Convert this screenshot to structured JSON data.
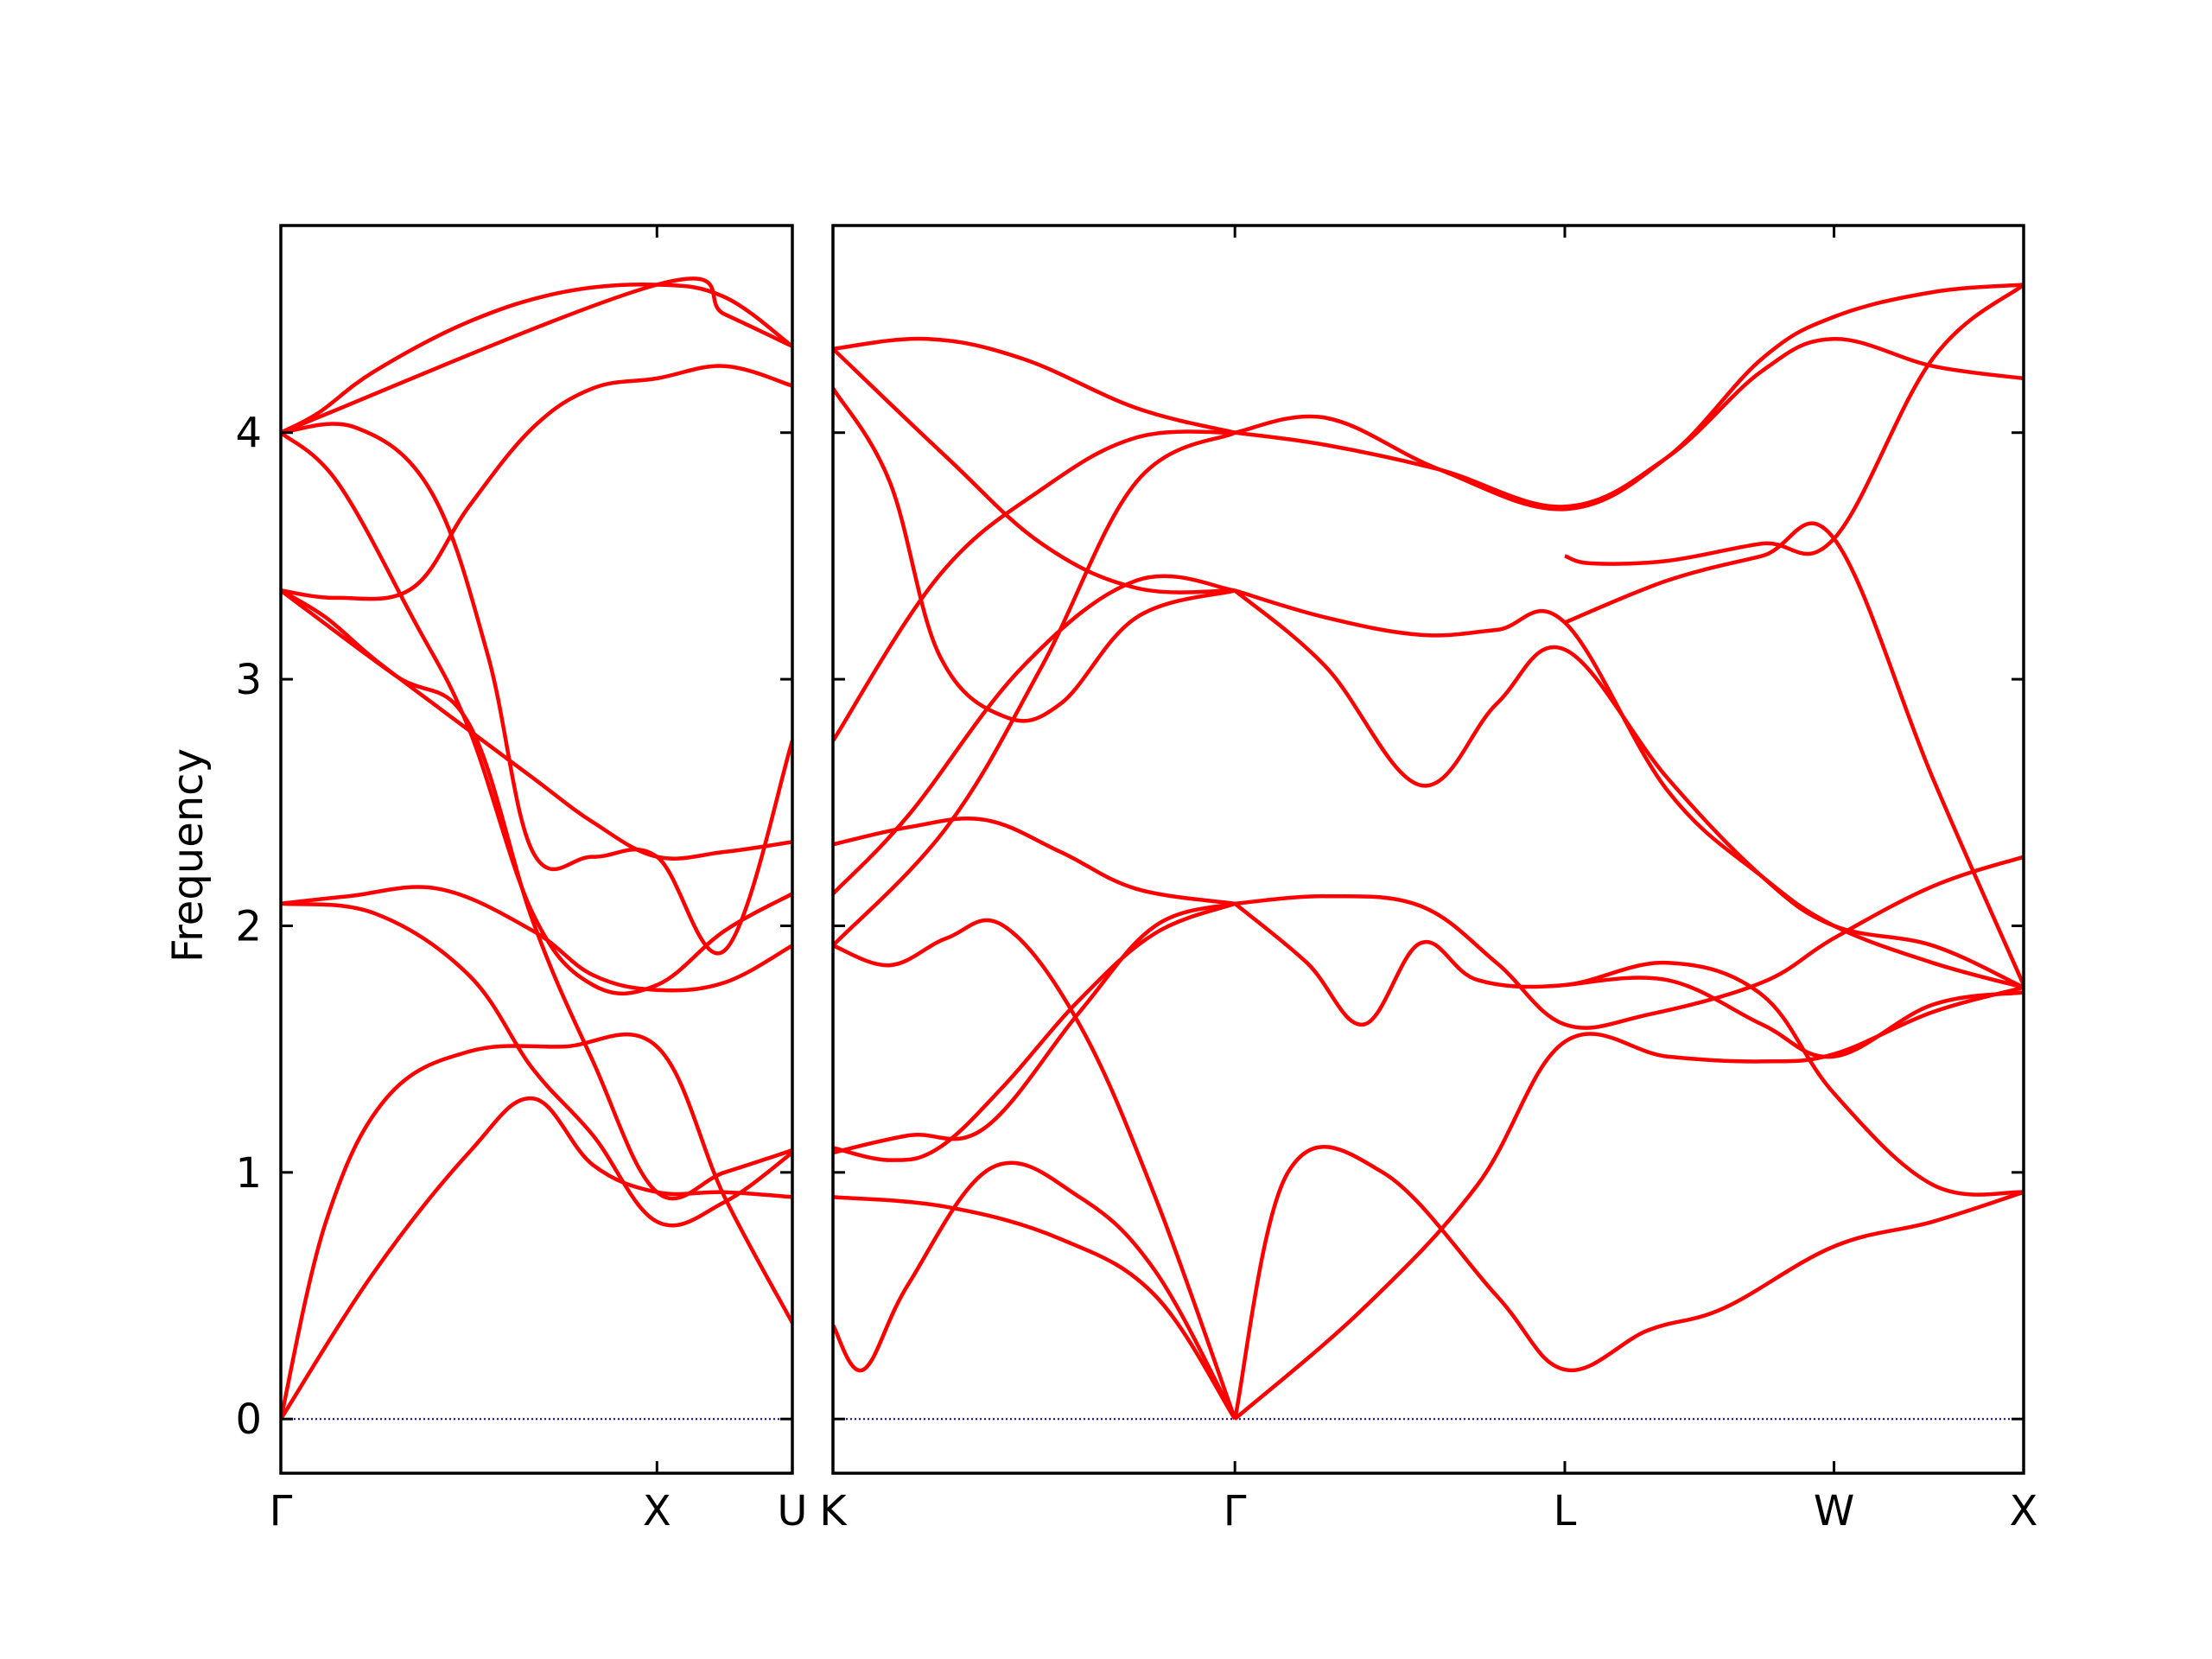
{
  "chart_data": {
    "type": "line",
    "ylabel": "Frequency",
    "ylim": [
      -0.22,
      4.84
    ],
    "yticks": [
      0,
      1,
      2,
      3,
      4
    ],
    "grid": false,
    "line_color": "#ff0000",
    "zero_line_color": "#0000aa",
    "panels": [
      {
        "kpoints": [
          "Γ",
          "X",
          "U"
        ],
        "kpoint_positions": [
          0,
          1,
          1.36
        ],
        "bands": [
          {
            "x": [
              0,
              0.25,
              0.5,
              0.67,
              0.83,
              1.0,
              1.18,
              1.36
            ],
            "y": [
              0,
              0.6,
              1.08,
              1.3,
              1.03,
              0.92,
              0.92,
              0.9
            ]
          },
          {
            "x": [
              0,
              0.12,
              0.28,
              0.5,
              0.75,
              1.0,
              1.18,
              1.36
            ],
            "y": [
              0,
              0.8,
              1.3,
              1.49,
              1.51,
              1.51,
              0.9,
              0.39
            ]
          },
          {
            "x": [
              0,
              0.25,
              0.5,
              0.67,
              0.83,
              1.0,
              1.18,
              1.36
            ],
            "y": [
              2.09,
              2.05,
              1.8,
              1.42,
              1.15,
              0.8,
              0.88,
              1.08
            ]
          },
          {
            "x": [
              0,
              0.18,
              0.42,
              0.67,
              0.83,
              1.0,
              1.18,
              1.36
            ],
            "y": [
              2.09,
              2.12,
              2.15,
              1.98,
              1.8,
              1.74,
              1.77,
              1.92
            ]
          },
          {
            "x": [
              0,
              0.3,
              0.5,
              0.67,
              0.83,
              1.0,
              1.18,
              1.36
            ],
            "y": [
              3.36,
              3.02,
              2.82,
              2.02,
              1.45,
              0.92,
              1.0,
              1.09
            ]
          },
          {
            "x": [
              0,
              0.12,
              0.25,
              0.45,
              0.67,
              0.83,
              1.0,
              1.18,
              1.36
            ],
            "y": [
              3.36,
              3.25,
              3.08,
              2.85,
              2.6,
              2.42,
              2.28,
              2.3,
              2.34
            ]
          },
          {
            "x": [
              0,
              0.15,
              0.35,
              0.5,
              0.67,
              0.83,
              1.0,
              1.18,
              1.36
            ],
            "y": [
              4.0,
              3.8,
              3.25,
              2.8,
              2.05,
              1.76,
              1.76,
              1.98,
              2.13
            ]
          },
          {
            "x": [
              0,
              0.15,
              0.35,
              0.5,
              0.67,
              0.83,
              1.0,
              1.18,
              1.36
            ],
            "y": [
              3.36,
              3.33,
              3.37,
              3.7,
              4.02,
              4.18,
              4.22,
              4.27,
              4.19
            ]
          },
          {
            "x": [
              0,
              0.2,
              0.4,
              0.55,
              0.67,
              0.83,
              1.0,
              1.18,
              1.36
            ],
            "y": [
              4.0,
              4.02,
              3.76,
              3.1,
              2.3,
              2.28,
              2.28,
              1.9,
              2.75
            ]
          },
          {
            "x": [
              0,
              0.1,
              0.25,
              0.5,
              0.75,
              1.0,
              1.18,
              1.36
            ],
            "y": [
              4.0,
              4.08,
              4.25,
              4.45,
              4.57,
              4.6,
              4.55,
              4.35
            ]
          },
          {
            "x": [
              0,
              1.0,
              1.18,
              1.36
            ],
            "y": [
              4.0,
              4.6,
              4.48,
              4.35
            ]
          }
        ]
      },
      {
        "kpoints": [
          "K",
          "Γ",
          "L",
          "W",
          "X"
        ],
        "kpoint_positions": [
          0,
          1.06,
          1.93,
          2.64,
          3.14
        ],
        "bands": [
          {
            "x": [
              0,
              0.08,
              0.2,
              0.42,
              0.65,
              0.85,
              1.06
            ],
            "y": [
              0.38,
              0.2,
              0.55,
              1.02,
              0.9,
              0.6,
              0
            ]
          },
          {
            "x": [
              0,
              0.3,
              0.6,
              0.85,
              1.06
            ],
            "y": [
              0.9,
              0.86,
              0.73,
              0.5,
              0
            ]
          },
          {
            "x": [
              1.06,
              1.4,
              1.7,
              1.93,
              2.2,
              2.45,
              2.64,
              2.9,
              3.14
            ],
            "y": [
              0,
              0.45,
              0.95,
              1.53,
              1.47,
              1.45,
              1.48,
              1.65,
              1.75
            ]
          },
          {
            "x": [
              1.06,
              1.2,
              1.45,
              1.75,
              1.93,
              2.15,
              2.35,
              2.64,
              2.9,
              3.14
            ],
            "y": [
              0,
              1.0,
              1.0,
              0.5,
              0.2,
              0.36,
              0.45,
              0.7,
              0.8,
              0.92
            ]
          },
          {
            "x": [
              0,
              0.2,
              0.4,
              0.65,
              0.85,
              1.06
            ],
            "y": [
              1.08,
              1.15,
              1.18,
              1.65,
              2.0,
              2.09
            ]
          },
          {
            "x": [
              0,
              0.15,
              0.28,
              0.45,
              0.65,
              0.85,
              1.06
            ],
            "y": [
              1.1,
              1.05,
              1.1,
              1.35,
              1.7,
              1.97,
              2.09
            ]
          },
          {
            "x": [
              0,
              0.15,
              0.3,
              0.45,
              0.65,
              0.85,
              1.06
            ],
            "y": [
              1.92,
              1.84,
              1.95,
              2.0,
              1.6,
              0.9,
              0
            ]
          },
          {
            "x": [
              1.06,
              1.25,
              1.4,
              1.55,
              1.7,
              1.93,
              2.2,
              2.45,
              2.64,
              2.9,
              3.14
            ],
            "y": [
              2.09,
              1.85,
              1.6,
              1.93,
              1.78,
              1.76,
              1.85,
              1.72,
              1.32,
              0.95,
              0.92
            ]
          },
          {
            "x": [
              1.06,
              1.3,
              1.55,
              1.75,
              1.93,
              2.15,
              2.45,
              2.64,
              2.9,
              3.14
            ],
            "y": [
              2.09,
              2.12,
              2.08,
              1.85,
              1.6,
              1.64,
              1.77,
              1.95,
              2.16,
              2.28
            ]
          },
          {
            "x": [
              1.93,
              2.2,
              2.45,
              2.64,
              2.9,
              3.14
            ],
            "y": [
              1.76,
              1.78,
              1.6,
              1.47,
              1.68,
              1.73
            ]
          },
          {
            "x": [
              0,
              0.2,
              0.4,
              0.6,
              0.8,
              1.06
            ],
            "y": [
              2.33,
              2.4,
              2.43,
              2.3,
              2.15,
              2.09
            ]
          },
          {
            "x": [
              1.06,
              1.3,
              1.55,
              1.75,
              1.93,
              2.2,
              2.45,
              2.64,
              2.9,
              3.14
            ],
            "y": [
              3.36,
              3.05,
              2.57,
              2.9,
              3.12,
              2.6,
              2.2,
              2.0,
              1.92,
              1.75
            ]
          },
          {
            "x": [
              1.06,
              1.3,
              1.55,
              1.75,
              1.93,
              2.2,
              2.45,
              2.64,
              2.9,
              3.14
            ],
            "y": [
              3.36,
              3.25,
              3.18,
              3.2,
              3.23,
              2.55,
              2.2,
              2.0,
              1.85,
              1.75
            ]
          },
          {
            "x": [
              0,
              0.2,
              0.5,
              0.8,
              1.06
            ],
            "y": [
              2.13,
              2.45,
              3.05,
              3.4,
              3.36
            ]
          },
          {
            "x": [
              0,
              0.15,
              0.28,
              0.45,
              0.6,
              0.8,
              1.06
            ],
            "y": [
              4.18,
              3.8,
              3.1,
              2.85,
              2.9,
              3.25,
              3.36
            ]
          },
          {
            "x": [
              0,
              0.3,
              0.55,
              0.8,
              1.06
            ],
            "y": [
              1.92,
              2.4,
              3.05,
              3.8,
              4.0
            ]
          },
          {
            "x": [
              0,
              0.28,
              0.55,
              0.8,
              1.06
            ],
            "y": [
              2.75,
              3.42,
              3.77,
              3.98,
              4.0
            ]
          },
          {
            "x": [
              0,
              0.3,
              0.55,
              0.8,
              1.06
            ],
            "y": [
              4.34,
              3.9,
              3.55,
              3.37,
              3.36
            ]
          },
          {
            "x": [
              0,
              0.25,
              0.5,
              0.8,
              1.06
            ],
            "y": [
              4.34,
              4.38,
              4.3,
              4.1,
              4.0
            ]
          },
          {
            "x": [
              1.06,
              1.3,
              1.6,
              1.93,
              2.2,
              2.45,
              2.64,
              2.9,
              3.14
            ],
            "y": [
              4.0,
              4.06,
              3.85,
              3.69,
              3.9,
              4.3,
              4.47,
              4.57,
              4.6
            ]
          },
          {
            "x": [
              1.06,
              1.3,
              1.6,
              1.93,
              2.2,
              2.45,
              2.64,
              2.9,
              3.14
            ],
            "y": [
              4.0,
              3.95,
              3.85,
              3.7,
              3.9,
              4.25,
              4.38,
              4.27,
              4.22
            ]
          },
          {
            "x": [
              1.93,
              2.0,
              2.2,
              2.45,
              2.64,
              2.9,
              3.14
            ],
            "y": [
              3.5,
              3.47,
              3.48,
              3.55,
              3.57,
              4.3,
              4.6
            ]
          },
          {
            "x": [
              1.93,
              2.2,
              2.45,
              2.64,
              2.9,
              3.14
            ],
            "y": [
              3.23,
              3.4,
              3.5,
              3.57,
              2.6,
              1.76
            ]
          }
        ]
      }
    ]
  }
}
